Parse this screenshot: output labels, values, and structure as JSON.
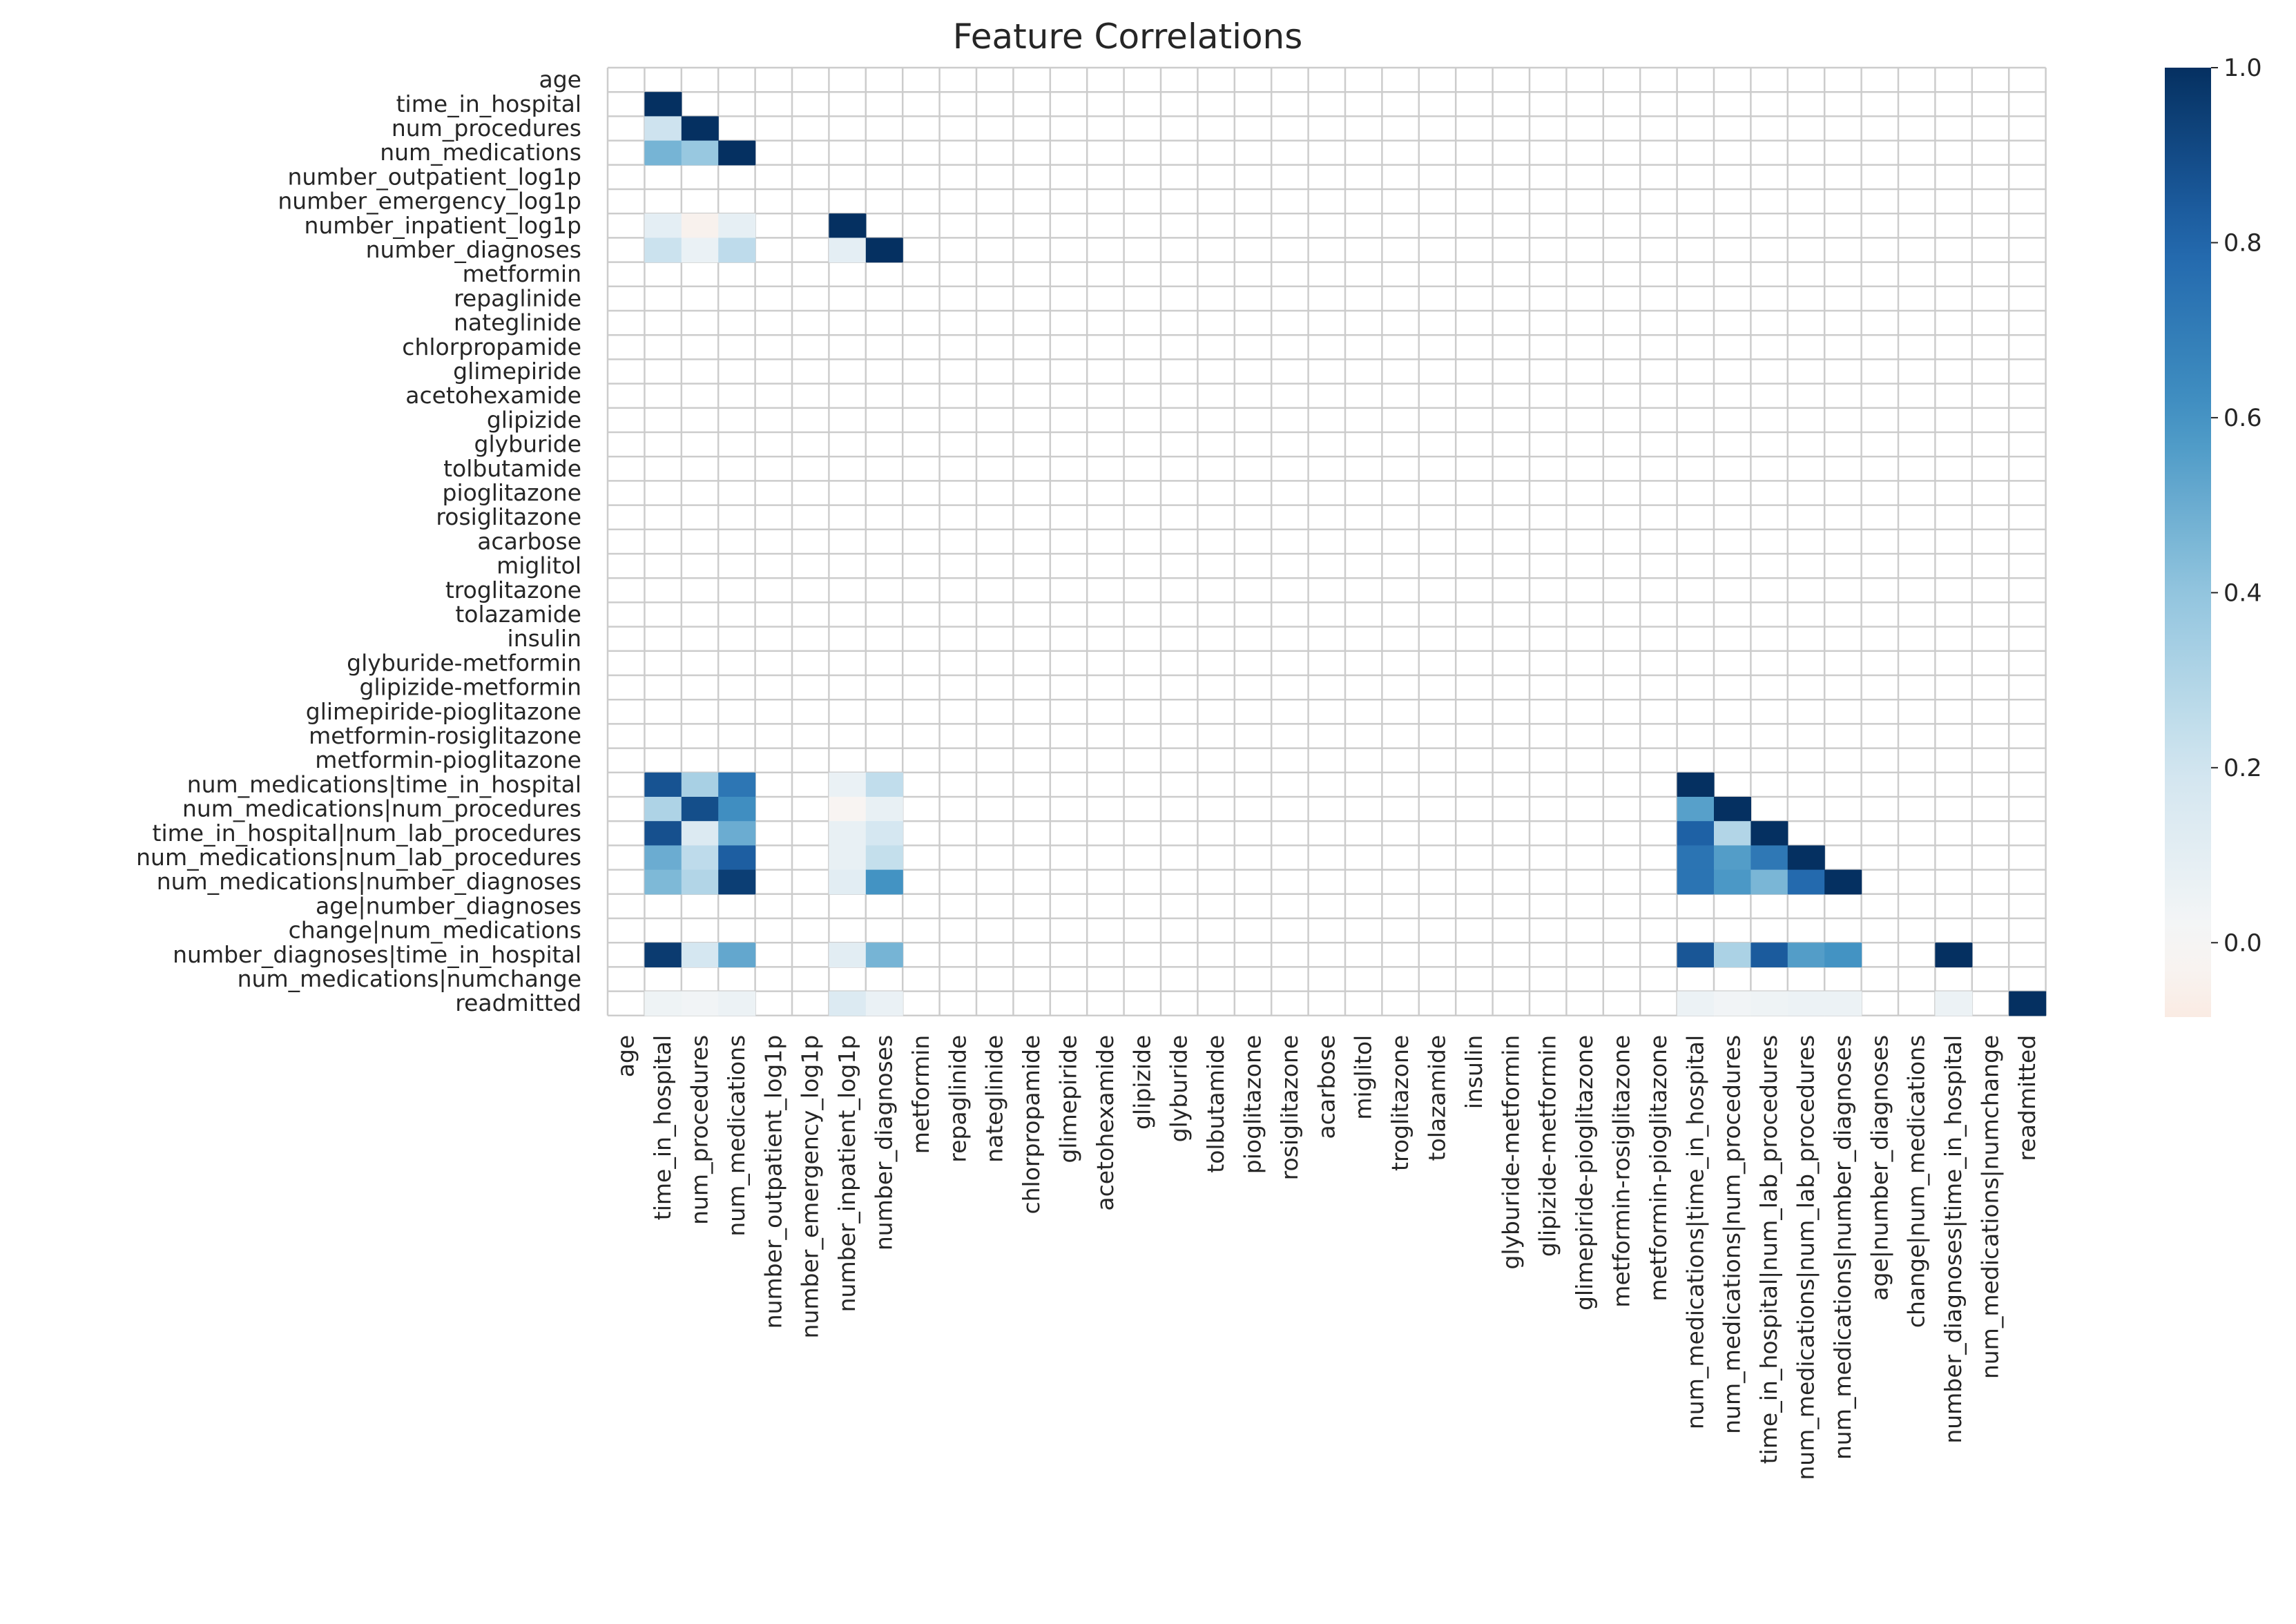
{
  "chart_data": {
    "type": "heatmap",
    "title": "Feature Correlations",
    "labels": [
      "age",
      "time_in_hospital",
      "num_procedures",
      "num_medications",
      "number_outpatient_log1p",
      "number_emergency_log1p",
      "number_inpatient_log1p",
      "number_diagnoses",
      "metformin",
      "repaglinide",
      "nateglinide",
      "chlorpropamide",
      "glimepiride",
      "acetohexamide",
      "glipizide",
      "glyburide",
      "tolbutamide",
      "pioglitazone",
      "rosiglitazone",
      "acarbose",
      "miglitol",
      "troglitazone",
      "tolazamide",
      "insulin",
      "glyburide-metformin",
      "glipizide-metformin",
      "glimepiride-pioglitazone",
      "metformin-rosiglitazone",
      "metformin-pioglitazone",
      "num_medications|time_in_hospital",
      "num_medications|num_procedures",
      "time_in_hospital|num_lab_procedures",
      "num_medications|num_lab_procedures",
      "num_medications|number_diagnoses",
      "age|number_diagnoses",
      "change|num_medications",
      "number_diagnoses|time_in_hospital",
      "num_medications|numchange",
      "readmitted"
    ],
    "mask": "lower-triangle-with-diagonal; constant features blank",
    "cells": [
      {
        "row": "time_in_hospital",
        "col": "time_in_hospital",
        "value": 1.0
      },
      {
        "row": "num_procedures",
        "col": "time_in_hospital",
        "value": 0.21
      },
      {
        "row": "num_procedures",
        "col": "num_procedures",
        "value": 1.0
      },
      {
        "row": "num_medications",
        "col": "time_in_hospital",
        "value": 0.47
      },
      {
        "row": "num_medications",
        "col": "num_procedures",
        "value": 0.38
      },
      {
        "row": "num_medications",
        "col": "num_medications",
        "value": 1.0
      },
      {
        "row": "number_inpatient_log1p",
        "col": "time_in_hospital",
        "value": 0.1
      },
      {
        "row": "number_inpatient_log1p",
        "col": "num_procedures",
        "value": -0.04
      },
      {
        "row": "number_inpatient_log1p",
        "col": "num_medications",
        "value": 0.09
      },
      {
        "row": "number_inpatient_log1p",
        "col": "number_inpatient_log1p",
        "value": 1.0
      },
      {
        "row": "number_diagnoses",
        "col": "time_in_hospital",
        "value": 0.22
      },
      {
        "row": "number_diagnoses",
        "col": "num_procedures",
        "value": 0.07
      },
      {
        "row": "number_diagnoses",
        "col": "num_medications",
        "value": 0.26
      },
      {
        "row": "number_diagnoses",
        "col": "number_inpatient_log1p",
        "value": 0.1
      },
      {
        "row": "number_diagnoses",
        "col": "number_diagnoses",
        "value": 1.0
      },
      {
        "row": "num_medications|time_in_hospital",
        "col": "time_in_hospital",
        "value": 0.87
      },
      {
        "row": "num_medications|time_in_hospital",
        "col": "num_procedures",
        "value": 0.33
      },
      {
        "row": "num_medications|time_in_hospital",
        "col": "num_medications",
        "value": 0.73
      },
      {
        "row": "num_medications|time_in_hospital",
        "col": "number_inpatient_log1p",
        "value": 0.07
      },
      {
        "row": "num_medications|time_in_hospital",
        "col": "number_diagnoses",
        "value": 0.25
      },
      {
        "row": "num_medications|time_in_hospital",
        "col": "num_medications|time_in_hospital",
        "value": 1.0
      },
      {
        "row": "num_medications|num_procedures",
        "col": "time_in_hospital",
        "value": 0.31
      },
      {
        "row": "num_medications|num_procedures",
        "col": "num_procedures",
        "value": 0.89
      },
      {
        "row": "num_medications|num_procedures",
        "col": "num_medications",
        "value": 0.62
      },
      {
        "row": "num_medications|num_procedures",
        "col": "number_inpatient_log1p",
        "value": -0.02
      },
      {
        "row": "num_medications|num_procedures",
        "col": "number_diagnoses",
        "value": 0.08
      },
      {
        "row": "num_medications|num_procedures",
        "col": "num_medications|time_in_hospital",
        "value": 0.55
      },
      {
        "row": "num_medications|num_procedures",
        "col": "num_medications|num_procedures",
        "value": 1.0
      },
      {
        "row": "time_in_hospital|num_lab_procedures",
        "col": "time_in_hospital",
        "value": 0.88
      },
      {
        "row": "time_in_hospital|num_lab_procedures",
        "col": "num_procedures",
        "value": 0.14
      },
      {
        "row": "time_in_hospital|num_lab_procedures",
        "col": "num_medications",
        "value": 0.5
      },
      {
        "row": "time_in_hospital|num_lab_procedures",
        "col": "number_inpatient_log1p",
        "value": 0.08
      },
      {
        "row": "time_in_hospital|num_lab_procedures",
        "col": "number_diagnoses",
        "value": 0.18
      },
      {
        "row": "time_in_hospital|num_lab_procedures",
        "col": "num_medications|time_in_hospital",
        "value": 0.82
      },
      {
        "row": "time_in_hospital|num_lab_procedures",
        "col": "num_medications|num_procedures",
        "value": 0.3
      },
      {
        "row": "time_in_hospital|num_lab_procedures",
        "col": "time_in_hospital|num_lab_procedures",
        "value": 1.0
      },
      {
        "row": "num_medications|num_lab_procedures",
        "col": "time_in_hospital",
        "value": 0.5
      },
      {
        "row": "num_medications|num_lab_procedures",
        "col": "num_procedures",
        "value": 0.26
      },
      {
        "row": "num_medications|num_lab_procedures",
        "col": "num_medications",
        "value": 0.83
      },
      {
        "row": "num_medications|num_lab_procedures",
        "col": "number_inpatient_log1p",
        "value": 0.08
      },
      {
        "row": "num_medications|num_lab_procedures",
        "col": "number_diagnoses",
        "value": 0.24
      },
      {
        "row": "num_medications|num_lab_procedures",
        "col": "num_medications|time_in_hospital",
        "value": 0.74
      },
      {
        "row": "num_medications|num_lab_procedures",
        "col": "num_medications|num_procedures",
        "value": 0.56
      },
      {
        "row": "num_medications|num_lab_procedures",
        "col": "time_in_hospital|num_lab_procedures",
        "value": 0.72
      },
      {
        "row": "num_medications|num_lab_procedures",
        "col": "num_medications|num_lab_procedures",
        "value": 1.0
      },
      {
        "row": "num_medications|number_diagnoses",
        "col": "time_in_hospital",
        "value": 0.45
      },
      {
        "row": "num_medications|number_diagnoses",
        "col": "num_procedures",
        "value": 0.3
      },
      {
        "row": "num_medications|number_diagnoses",
        "col": "num_medications",
        "value": 0.95
      },
      {
        "row": "num_medications|number_diagnoses",
        "col": "number_inpatient_log1p",
        "value": 0.11
      },
      {
        "row": "num_medications|number_diagnoses",
        "col": "number_diagnoses",
        "value": 0.6
      },
      {
        "row": "num_medications|number_diagnoses",
        "col": "num_medications|time_in_hospital",
        "value": 0.74
      },
      {
        "row": "num_medications|number_diagnoses",
        "col": "num_medications|num_procedures",
        "value": 0.58
      },
      {
        "row": "num_medications|number_diagnoses",
        "col": "time_in_hospital|num_lab_procedures",
        "value": 0.46
      },
      {
        "row": "num_medications|number_diagnoses",
        "col": "num_medications|num_lab_procedures",
        "value": 0.78
      },
      {
        "row": "num_medications|number_diagnoses",
        "col": "num_medications|number_diagnoses",
        "value": 1.0
      },
      {
        "row": "number_diagnoses|time_in_hospital",
        "col": "time_in_hospital",
        "value": 0.96
      },
      {
        "row": "number_diagnoses|time_in_hospital",
        "col": "num_procedures",
        "value": 0.18
      },
      {
        "row": "number_diagnoses|time_in_hospital",
        "col": "num_medications",
        "value": 0.52
      },
      {
        "row": "number_diagnoses|time_in_hospital",
        "col": "number_inpatient_log1p",
        "value": 0.11
      },
      {
        "row": "number_diagnoses|time_in_hospital",
        "col": "number_diagnoses",
        "value": 0.47
      },
      {
        "row": "number_diagnoses|time_in_hospital",
        "col": "num_medications|time_in_hospital",
        "value": 0.86
      },
      {
        "row": "number_diagnoses|time_in_hospital",
        "col": "num_medications|num_procedures",
        "value": 0.32
      },
      {
        "row": "number_diagnoses|time_in_hospital",
        "col": "time_in_hospital|num_lab_procedures",
        "value": 0.84
      },
      {
        "row": "number_diagnoses|time_in_hospital",
        "col": "num_medications|num_lab_procedures",
        "value": 0.56
      },
      {
        "row": "number_diagnoses|time_in_hospital",
        "col": "num_medications|number_diagnoses",
        "value": 0.6
      },
      {
        "row": "number_diagnoses|time_in_hospital",
        "col": "number_diagnoses|time_in_hospital",
        "value": 1.0
      },
      {
        "row": "readmitted",
        "col": "time_in_hospital",
        "value": 0.05
      },
      {
        "row": "readmitted",
        "col": "num_procedures",
        "value": 0.03
      },
      {
        "row": "readmitted",
        "col": "num_medications",
        "value": 0.06
      },
      {
        "row": "readmitted",
        "col": "number_inpatient_log1p",
        "value": 0.14
      },
      {
        "row": "readmitted",
        "col": "number_diagnoses",
        "value": 0.07
      },
      {
        "row": "readmitted",
        "col": "num_medications|time_in_hospital",
        "value": 0.06
      },
      {
        "row": "readmitted",
        "col": "num_medications|num_procedures",
        "value": 0.03
      },
      {
        "row": "readmitted",
        "col": "time_in_hospital|num_lab_procedures",
        "value": 0.05
      },
      {
        "row": "readmitted",
        "col": "num_medications|num_lab_procedures",
        "value": 0.06
      },
      {
        "row": "readmitted",
        "col": "num_medications|number_diagnoses",
        "value": 0.06
      },
      {
        "row": "readmitted",
        "col": "number_diagnoses|time_in_hospital",
        "value": 0.06
      },
      {
        "row": "readmitted",
        "col": "readmitted",
        "value": 1.0
      }
    ],
    "colorbar": {
      "vmin": -0.085,
      "vmax": 1.0,
      "ticks": [
        "0.0",
        "0.2",
        "0.4",
        "0.6",
        "0.8",
        "1.0"
      ],
      "tick_values": [
        0.0,
        0.2,
        0.4,
        0.6,
        0.8,
        1.0
      ],
      "colormap": "RdBu",
      "stops": [
        "#67001f",
        "#b2182b",
        "#d6604d",
        "#f4a582",
        "#fddbc7",
        "#f7f7f7",
        "#d1e5f0",
        "#92c5de",
        "#4393c3",
        "#2166ac",
        "#053061"
      ]
    },
    "grid": true
  }
}
